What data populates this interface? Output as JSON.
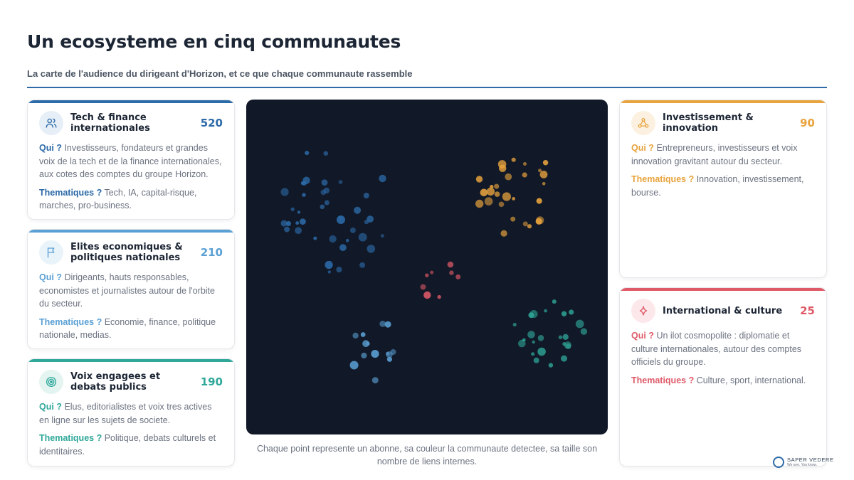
{
  "header": {
    "title": "Un ecosysteme en cinq communautes",
    "subtitle": "La carte de l'audience du dirigeant d'Horizon, et ce que chaque communaute rassemble"
  },
  "labels": {
    "qui": "Qui ?",
    "thematiques": "Thematiques ?"
  },
  "cards": [
    {
      "title": "Tech & finance internationales",
      "count": "520",
      "color": "#2c6aa8",
      "icon": "users-icon",
      "qui": "Investisseurs, fondateurs et grandes voix de la tech et de la finance internationales, aux cotes des comptes du groupe Horizon.",
      "thematiques": "Tech, IA, capital-risque, marches, pro-business."
    },
    {
      "title": "Elites economiques & politiques nationales",
      "count": "210",
      "color": "#5aa0d4",
      "icon": "flag-icon",
      "qui": "Dirigeants, hauts responsables, economistes et journalistes autour de l'orbite du secteur.",
      "thematiques": "Economie, finance, politique nationale, medias."
    },
    {
      "title": "Voix engagees et debats publics",
      "count": "190",
      "color": "#2fa89a",
      "icon": "target-icon",
      "qui": "Elus, editorialistes et voix tres actives en ligne sur les sujets de societe.",
      "thematiques": "Politique, debats culturels et identitaires."
    },
    {
      "title": "Investissement & innovation",
      "count": "90",
      "color": "#e8a33d",
      "icon": "network-icon",
      "qui": "Entrepreneurs, investisseurs et voix innovation gravitant autour du secteur.",
      "thematiques": "Innovation, investissement, bourse."
    },
    {
      "title": "International & culture",
      "count": "25",
      "color": "#df5a68",
      "icon": "sparkle-icon",
      "qui": "Un ilot cosmopolite : diplomatie et culture internationales, autour des comptes officiels du groupe.",
      "thematiques": "Culture, sport, international."
    }
  ],
  "caption": "Chaque point represente un abonne, sa couleur la communaute detectee, sa taille son nombre de liens internes.",
  "brand": {
    "name": "SAPER VEDERE",
    "tagline": "We see. You know."
  }
}
